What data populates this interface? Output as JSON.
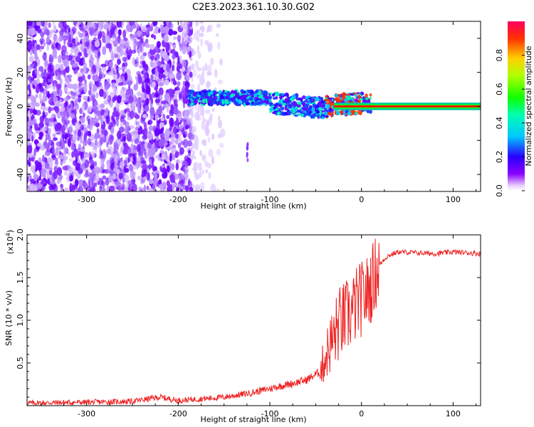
{
  "title": "C2E3.2023.361.10.30.G02",
  "chart_data": [
    {
      "type": "heatmap",
      "xlabel": "Height of straight line (km)",
      "ylabel": "Frequency (Hz)",
      "xlim": [
        -365,
        130
      ],
      "ylim": [
        -50,
        50
      ],
      "x_ticks": [
        -300,
        -200,
        -100,
        0,
        100
      ],
      "y_ticks": [
        -40,
        -20,
        0,
        20,
        40
      ],
      "colorbar": {
        "label": "Normalized spectral amplitude",
        "range": [
          0.0,
          1.0
        ],
        "ticks": [
          0.0,
          0.2,
          0.4,
          0.6,
          0.8
        ]
      },
      "features": [
        {
          "name": "noise",
          "x": [
            -365,
            -160
          ],
          "y": [
            -50,
            50
          ],
          "amplitude": 0.1
        },
        {
          "name": "signal_band",
          "x": [
            -190,
            10
          ],
          "y_center": [
            6,
            0
          ],
          "amplitude": 0.5
        },
        {
          "name": "carrier_line",
          "x": [
            -30,
            130
          ],
          "y": 0,
          "amplitude": 0.9
        }
      ]
    },
    {
      "type": "line",
      "xlabel": "Height of straight line (km)",
      "ylabel": "SNR (10 * v/v)",
      "y_multiplier_label": "(x10",
      "y_multiplier_exp": "4",
      "y_multiplier_close": ")",
      "xlim": [
        -365,
        130
      ],
      "ylim": [
        0,
        2.0
      ],
      "x_ticks": [
        -300,
        -200,
        -100,
        0,
        100
      ],
      "y_ticks": [
        0.5,
        1.0,
        1.5,
        2.0
      ],
      "y_tick_labels": [
        "0.5",
        "1.0",
        "1.5",
        "2.0"
      ],
      "series": [
        {
          "color": "#ee2222",
          "x": [
            -365,
            -300,
            -250,
            -220,
            -200,
            -150,
            -120,
            -100,
            -80,
            -60,
            -45,
            -40,
            -35,
            -30,
            -25,
            -20,
            -15,
            -10,
            -5,
            0,
            5,
            10,
            15,
            20,
            25,
            30,
            40,
            60,
            80,
            100,
            130
          ],
          "y": [
            0.03,
            0.04,
            0.05,
            0.1,
            0.06,
            0.1,
            0.15,
            0.2,
            0.25,
            0.3,
            0.4,
            0.55,
            0.7,
            0.8,
            0.95,
            1.0,
            1.05,
            1.1,
            1.2,
            1.25,
            1.3,
            1.4,
            1.55,
            1.65,
            1.72,
            1.76,
            1.8,
            1.79,
            1.78,
            1.8,
            1.78
          ]
        }
      ]
    }
  ]
}
